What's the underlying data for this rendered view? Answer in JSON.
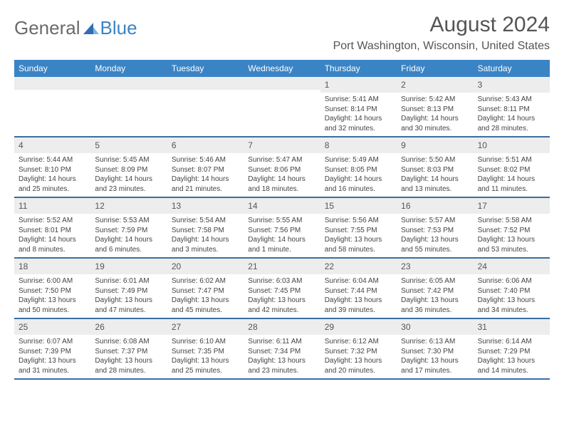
{
  "brand": {
    "part1": "General",
    "part2": "Blue"
  },
  "title": "August 2024",
  "location": "Port Washington, Wisconsin, United States",
  "colors": {
    "header_bg": "#3a84c5",
    "header_text": "#ffffff",
    "daynum_bg": "#ededed",
    "border": "#3a6ea5",
    "text": "#444444"
  },
  "day_names": [
    "Sunday",
    "Monday",
    "Tuesday",
    "Wednesday",
    "Thursday",
    "Friday",
    "Saturday"
  ],
  "weeks": [
    [
      null,
      null,
      null,
      null,
      {
        "n": "1",
        "sr": "5:41 AM",
        "ss": "8:14 PM",
        "dl": "14 hours and 32 minutes."
      },
      {
        "n": "2",
        "sr": "5:42 AM",
        "ss": "8:13 PM",
        "dl": "14 hours and 30 minutes."
      },
      {
        "n": "3",
        "sr": "5:43 AM",
        "ss": "8:11 PM",
        "dl": "14 hours and 28 minutes."
      }
    ],
    [
      {
        "n": "4",
        "sr": "5:44 AM",
        "ss": "8:10 PM",
        "dl": "14 hours and 25 minutes."
      },
      {
        "n": "5",
        "sr": "5:45 AM",
        "ss": "8:09 PM",
        "dl": "14 hours and 23 minutes."
      },
      {
        "n": "6",
        "sr": "5:46 AM",
        "ss": "8:07 PM",
        "dl": "14 hours and 21 minutes."
      },
      {
        "n": "7",
        "sr": "5:47 AM",
        "ss": "8:06 PM",
        "dl": "14 hours and 18 minutes."
      },
      {
        "n": "8",
        "sr": "5:49 AM",
        "ss": "8:05 PM",
        "dl": "14 hours and 16 minutes."
      },
      {
        "n": "9",
        "sr": "5:50 AM",
        "ss": "8:03 PM",
        "dl": "14 hours and 13 minutes."
      },
      {
        "n": "10",
        "sr": "5:51 AM",
        "ss": "8:02 PM",
        "dl": "14 hours and 11 minutes."
      }
    ],
    [
      {
        "n": "11",
        "sr": "5:52 AM",
        "ss": "8:01 PM",
        "dl": "14 hours and 8 minutes."
      },
      {
        "n": "12",
        "sr": "5:53 AM",
        "ss": "7:59 PM",
        "dl": "14 hours and 6 minutes."
      },
      {
        "n": "13",
        "sr": "5:54 AM",
        "ss": "7:58 PM",
        "dl": "14 hours and 3 minutes."
      },
      {
        "n": "14",
        "sr": "5:55 AM",
        "ss": "7:56 PM",
        "dl": "14 hours and 1 minute."
      },
      {
        "n": "15",
        "sr": "5:56 AM",
        "ss": "7:55 PM",
        "dl": "13 hours and 58 minutes."
      },
      {
        "n": "16",
        "sr": "5:57 AM",
        "ss": "7:53 PM",
        "dl": "13 hours and 55 minutes."
      },
      {
        "n": "17",
        "sr": "5:58 AM",
        "ss": "7:52 PM",
        "dl": "13 hours and 53 minutes."
      }
    ],
    [
      {
        "n": "18",
        "sr": "6:00 AM",
        "ss": "7:50 PM",
        "dl": "13 hours and 50 minutes."
      },
      {
        "n": "19",
        "sr": "6:01 AM",
        "ss": "7:49 PM",
        "dl": "13 hours and 47 minutes."
      },
      {
        "n": "20",
        "sr": "6:02 AM",
        "ss": "7:47 PM",
        "dl": "13 hours and 45 minutes."
      },
      {
        "n": "21",
        "sr": "6:03 AM",
        "ss": "7:45 PM",
        "dl": "13 hours and 42 minutes."
      },
      {
        "n": "22",
        "sr": "6:04 AM",
        "ss": "7:44 PM",
        "dl": "13 hours and 39 minutes."
      },
      {
        "n": "23",
        "sr": "6:05 AM",
        "ss": "7:42 PM",
        "dl": "13 hours and 36 minutes."
      },
      {
        "n": "24",
        "sr": "6:06 AM",
        "ss": "7:40 PM",
        "dl": "13 hours and 34 minutes."
      }
    ],
    [
      {
        "n": "25",
        "sr": "6:07 AM",
        "ss": "7:39 PM",
        "dl": "13 hours and 31 minutes."
      },
      {
        "n": "26",
        "sr": "6:08 AM",
        "ss": "7:37 PM",
        "dl": "13 hours and 28 minutes."
      },
      {
        "n": "27",
        "sr": "6:10 AM",
        "ss": "7:35 PM",
        "dl": "13 hours and 25 minutes."
      },
      {
        "n": "28",
        "sr": "6:11 AM",
        "ss": "7:34 PM",
        "dl": "13 hours and 23 minutes."
      },
      {
        "n": "29",
        "sr": "6:12 AM",
        "ss": "7:32 PM",
        "dl": "13 hours and 20 minutes."
      },
      {
        "n": "30",
        "sr": "6:13 AM",
        "ss": "7:30 PM",
        "dl": "13 hours and 17 minutes."
      },
      {
        "n": "31",
        "sr": "6:14 AM",
        "ss": "7:29 PM",
        "dl": "13 hours and 14 minutes."
      }
    ]
  ],
  "labels": {
    "sunrise": "Sunrise:",
    "sunset": "Sunset:",
    "daylight": "Daylight:"
  }
}
